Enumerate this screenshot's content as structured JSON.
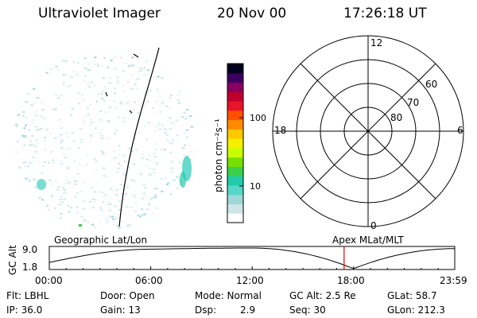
{
  "header": {
    "instrument": "Ultraviolet Imager",
    "date": "20 Nov 00",
    "time": "17:26:18 UT"
  },
  "colorbar": {
    "label": "photon cm⁻²s⁻¹",
    "ticks": [
      "100",
      "10"
    ],
    "scale": "log",
    "colors": [
      "#ffffff",
      "#cfe6e6",
      "#9fd6d6",
      "#56d6c8",
      "#22ccaa",
      "#3ad04a",
      "#77e000",
      "#c8ff00",
      "#f4f000",
      "#ffc800",
      "#ff8c00",
      "#ff5000",
      "#e8142a",
      "#c0002c",
      "#8a0060",
      "#3c0060",
      "#000020"
    ]
  },
  "polar_plot": {
    "mlt_labels": [
      "12",
      "18",
      "6",
      "0"
    ],
    "mlat_labels": [
      "60",
      "70",
      "80"
    ]
  },
  "altitude_strip": {
    "left_title": "Geographic Lat/Lon",
    "right_title": "Apex MLat/MLT",
    "ylabel": "GC Alt",
    "yticks": [
      "9.0",
      "1.8"
    ],
    "xticks": [
      "00:00",
      "06:00",
      "12:00",
      "18:00",
      "23:59"
    ],
    "marker_color": "#e00000"
  },
  "footer": {
    "flt": "Flt: LBHL",
    "ip": "IP: 36.0",
    "door": "Door: Open",
    "gain": "Gain: 13",
    "mode": "Mode: Normal",
    "dsp_label": "Dsp:",
    "dsp_value": "2.9",
    "gcalt": "GC Alt: 2.5 Re",
    "seq": "Seq: 30",
    "glat": "GLat: 58.7",
    "glon": "GLon: 212.3"
  },
  "chart_data": {
    "type": "line",
    "title": "",
    "xlabel": "",
    "ylabel": "GC Alt",
    "x": [
      "00:00",
      "06:00",
      "12:00",
      "18:00",
      "23:59"
    ],
    "ylim": [
      1.8,
      9.0
    ],
    "series": [
      {
        "values": [
          4.0,
          8.6,
          9.0,
          1.8,
          8.8
        ]
      }
    ],
    "marker_time": "17:26:18"
  }
}
